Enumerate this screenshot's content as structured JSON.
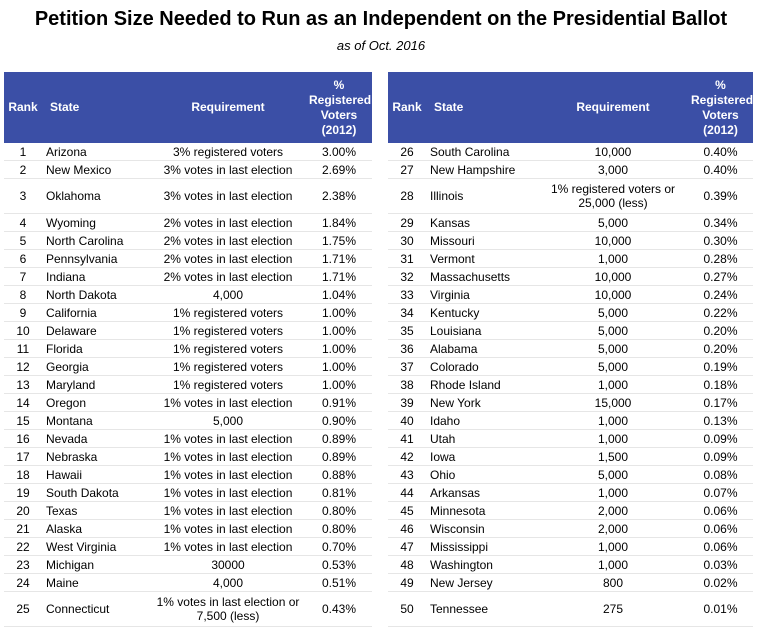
{
  "title": "Petition Size Needed to Run as an Independent on the Presidential Ballot",
  "subtitle": "as of Oct. 2016",
  "headers": {
    "rank": "Rank",
    "state": "State",
    "requirement": "Requirement",
    "pct_lines": [
      "%",
      "Registered",
      "Voters",
      "(2012)"
    ]
  },
  "left_rows": [
    {
      "rank": "1",
      "state": "Arizona",
      "req": "3% registered voters",
      "pct": "3.00%"
    },
    {
      "rank": "2",
      "state": "New Mexico",
      "req": "3% votes in last election",
      "pct": "2.69%"
    },
    {
      "rank": "3",
      "state": "Oklahoma",
      "req": "3% votes in last election",
      "pct": "2.38%",
      "tall": true
    },
    {
      "rank": "4",
      "state": "Wyoming",
      "req": "2% votes in last election",
      "pct": "1.84%"
    },
    {
      "rank": "5",
      "state": "North Carolina",
      "req": "2% votes in last election",
      "pct": "1.75%"
    },
    {
      "rank": "6",
      "state": "Pennsylvania",
      "req": "2% votes in last election",
      "pct": "1.71%"
    },
    {
      "rank": "7",
      "state": "Indiana",
      "req": "2% votes in last election",
      "pct": "1.71%"
    },
    {
      "rank": "8",
      "state": "North Dakota",
      "req": "4,000",
      "pct": "1.04%"
    },
    {
      "rank": "9",
      "state": "California",
      "req": "1% registered voters",
      "pct": "1.00%"
    },
    {
      "rank": "10",
      "state": "Delaware",
      "req": "1% registered voters",
      "pct": "1.00%"
    },
    {
      "rank": "11",
      "state": "Florida",
      "req": "1% registered voters",
      "pct": "1.00%"
    },
    {
      "rank": "12",
      "state": "Georgia",
      "req": "1% registered voters",
      "pct": "1.00%"
    },
    {
      "rank": "13",
      "state": "Maryland",
      "req": "1% registered voters",
      "pct": "1.00%"
    },
    {
      "rank": "14",
      "state": "Oregon",
      "req": "1% votes in last election",
      "pct": "0.91%"
    },
    {
      "rank": "15",
      "state": "Montana",
      "req": "5,000",
      "pct": "0.90%"
    },
    {
      "rank": "16",
      "state": "Nevada",
      "req": "1% votes in last election",
      "pct": "0.89%"
    },
    {
      "rank": "17",
      "state": "Nebraska",
      "req": "1% votes in last election",
      "pct": "0.89%"
    },
    {
      "rank": "18",
      "state": "Hawaii",
      "req": "1% votes in last election",
      "pct": "0.88%"
    },
    {
      "rank": "19",
      "state": "South Dakota",
      "req": "1% votes in last election",
      "pct": "0.81%"
    },
    {
      "rank": "20",
      "state": "Texas",
      "req": "1% votes in last election",
      "pct": "0.80%"
    },
    {
      "rank": "21",
      "state": "Alaska",
      "req": "1% votes in last election",
      "pct": "0.80%"
    },
    {
      "rank": "22",
      "state": "West Virginia",
      "req": "1% votes in last election",
      "pct": "0.70%"
    },
    {
      "rank": "23",
      "state": "Michigan",
      "req": "30000",
      "pct": "0.53%"
    },
    {
      "rank": "24",
      "state": "Maine",
      "req": "4,000",
      "pct": "0.51%"
    },
    {
      "rank": "25",
      "state": "Connecticut",
      "req": "1% votes in last election or 7,500 (less)",
      "pct": "0.43%",
      "tall": true
    }
  ],
  "right_rows": [
    {
      "rank": "26",
      "state": "South Carolina",
      "req": "10,000",
      "pct": "0.40%"
    },
    {
      "rank": "27",
      "state": "New Hampshire",
      "req": "3,000",
      "pct": "0.40%"
    },
    {
      "rank": "28",
      "state": "Illinois",
      "req": "1% registered voters or 25,000 (less)",
      "pct": "0.39%",
      "tall": true
    },
    {
      "rank": "29",
      "state": "Kansas",
      "req": "5,000",
      "pct": "0.34%"
    },
    {
      "rank": "30",
      "state": "Missouri",
      "req": "10,000",
      "pct": "0.30%"
    },
    {
      "rank": "31",
      "state": "Vermont",
      "req": "1,000",
      "pct": "0.28%"
    },
    {
      "rank": "32",
      "state": "Massachusetts",
      "req": "10,000",
      "pct": "0.27%"
    },
    {
      "rank": "33",
      "state": "Virginia",
      "req": "10,000",
      "pct": "0.24%"
    },
    {
      "rank": "34",
      "state": "Kentucky",
      "req": "5,000",
      "pct": "0.22%"
    },
    {
      "rank": "35",
      "state": "Louisiana",
      "req": "5,000",
      "pct": "0.20%"
    },
    {
      "rank": "36",
      "state": "Alabama",
      "req": "5,000",
      "pct": "0.20%"
    },
    {
      "rank": "37",
      "state": "Colorado",
      "req": "5,000",
      "pct": "0.19%"
    },
    {
      "rank": "38",
      "state": "Rhode Island",
      "req": "1,000",
      "pct": "0.18%"
    },
    {
      "rank": "39",
      "state": "New York",
      "req": "15,000",
      "pct": "0.17%"
    },
    {
      "rank": "40",
      "state": "Idaho",
      "req": "1,000",
      "pct": "0.13%"
    },
    {
      "rank": "41",
      "state": "Utah",
      "req": "1,000",
      "pct": "0.09%"
    },
    {
      "rank": "42",
      "state": "Iowa",
      "req": "1,500",
      "pct": "0.09%"
    },
    {
      "rank": "43",
      "state": "Ohio",
      "req": "5,000",
      "pct": "0.08%"
    },
    {
      "rank": "44",
      "state": "Arkansas",
      "req": "1,000",
      "pct": "0.07%"
    },
    {
      "rank": "45",
      "state": "Minnesota",
      "req": "2,000",
      "pct": "0.06%"
    },
    {
      "rank": "46",
      "state": "Wisconsin",
      "req": "2,000",
      "pct": "0.06%"
    },
    {
      "rank": "47",
      "state": "Mississippi",
      "req": "1,000",
      "pct": "0.06%"
    },
    {
      "rank": "48",
      "state": "Washington",
      "req": "1,000",
      "pct": "0.03%"
    },
    {
      "rank": "49",
      "state": "New Jersey",
      "req": "800",
      "pct": "0.02%"
    },
    {
      "rank": "50",
      "state": "Tennessee",
      "req": "275",
      "pct": "0.01%",
      "tall": true
    }
  ],
  "colors": {
    "header_bg": "#3b4fa6",
    "header_text": "#ffffff"
  }
}
